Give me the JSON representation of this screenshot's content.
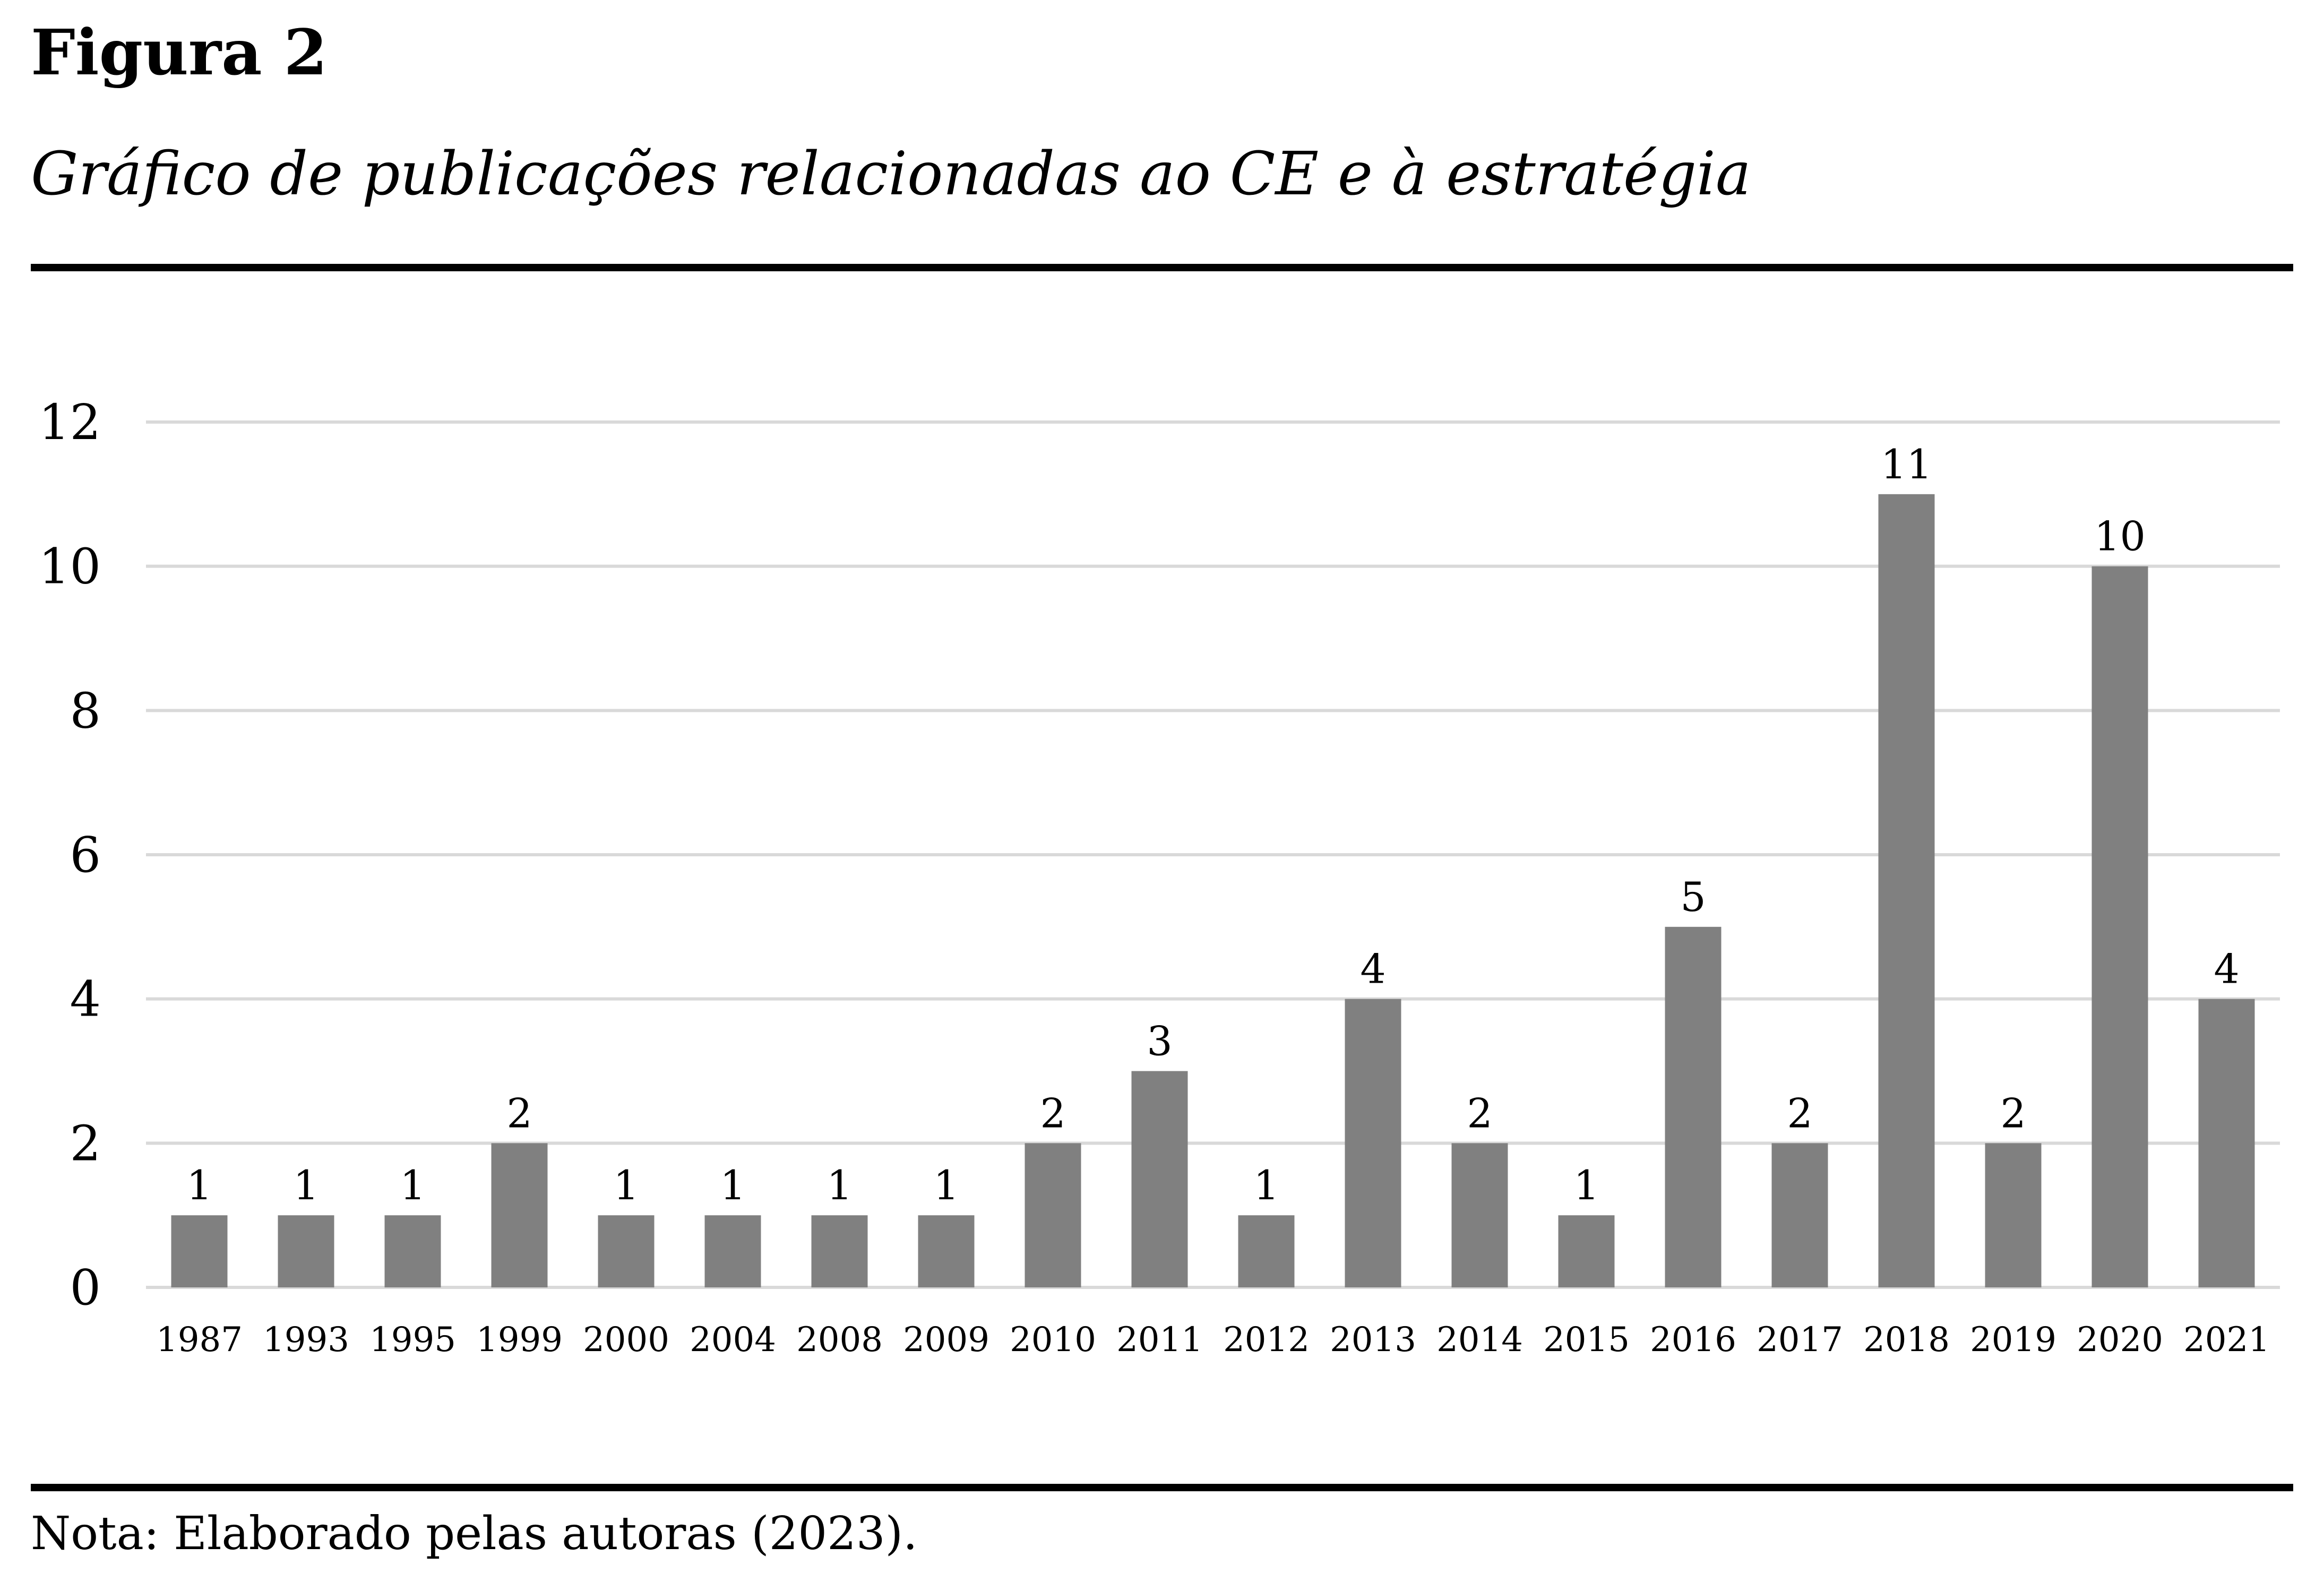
{
  "figure": {
    "label": "Figura 2",
    "title": "Gráfico de publicações relacionadas ao CE e à estratégia",
    "note": "Nota: Elaborado pelas autoras (2023)."
  },
  "chart_data": {
    "type": "bar",
    "categories": [
      "1987",
      "1993",
      "1995",
      "1999",
      "2000",
      "2004",
      "2008",
      "2009",
      "2010",
      "2011",
      "2012",
      "2013",
      "2014",
      "2015",
      "2016",
      "2017",
      "2018",
      "2019",
      "2020",
      "2021"
    ],
    "values": [
      1,
      1,
      1,
      2,
      1,
      1,
      1,
      1,
      2,
      3,
      1,
      4,
      2,
      1,
      5,
      2,
      11,
      2,
      10,
      4
    ],
    "data_labels": [
      "1",
      "1",
      "1",
      "2",
      "1",
      "1",
      "1",
      "1",
      "2",
      "3",
      "1",
      "4",
      "2",
      "1",
      "5",
      "2",
      "11",
      "2",
      "10",
      "4"
    ],
    "y_ticks": [
      "0",
      "2",
      "4",
      "6",
      "8",
      "10",
      "12"
    ],
    "y_tick_values": [
      0,
      2,
      4,
      6,
      8,
      10,
      12
    ],
    "title": "",
    "xlabel": "",
    "ylabel": "",
    "ylim": [
      0,
      12
    ],
    "grid": true,
    "legend": "none",
    "colors": {
      "bar": "#808080",
      "grid": "#d9d9d9",
      "text": "#000000"
    }
  }
}
